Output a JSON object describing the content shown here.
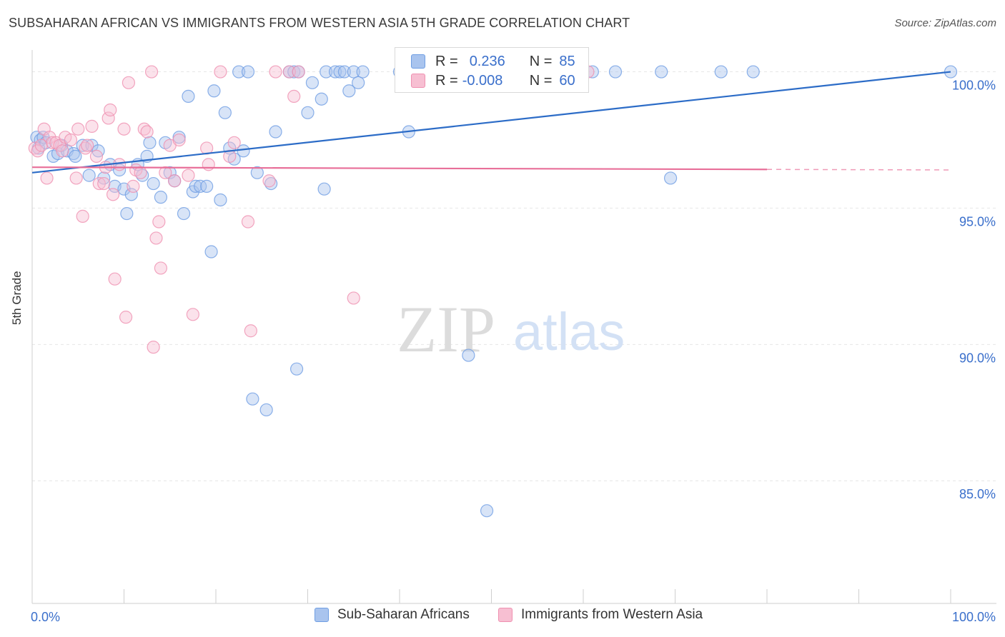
{
  "header": {
    "title": "SUBSAHARAN AFRICAN VS IMMIGRANTS FROM WESTERN ASIA 5TH GRADE CORRELATION CHART",
    "source": "Source: ZipAtlas.com"
  },
  "watermark": {
    "zip": "ZIP",
    "atlas": "atlas"
  },
  "legend_top": {
    "row1": {
      "r_label": "R =",
      "r_value": "0.236",
      "n_label": "N =",
      "n_value": "85"
    },
    "row2": {
      "r_label": "R =",
      "r_value": "-0.008",
      "n_label": "N =",
      "n_value": "60"
    }
  },
  "colors": {
    "blue": "#6f9ee3",
    "blue_fill": "#a9c4ee",
    "blue_line": "#2c6cc7",
    "pink": "#ef90b0",
    "pink_fill": "#f7bfd2",
    "pink_line": "#e86f99",
    "tick_text": "#3a6fcb"
  },
  "chart_data": {
    "type": "scatter",
    "title": "SUBSAHARAN AFRICAN VS IMMIGRANTS FROM WESTERN ASIA 5TH GRADE CORRELATION CHART",
    "xlabel": "",
    "ylabel": "5th Grade",
    "xlim": [
      0,
      100
    ],
    "ylim": [
      80.5,
      100.8
    ],
    "x_tick_labels": [
      "0.0%",
      "100.0%"
    ],
    "y_ticks": [
      85,
      90,
      95,
      100
    ],
    "y_tick_labels": [
      "85.0%",
      "90.0%",
      "95.0%",
      "100.0%"
    ],
    "grid": true,
    "legend_placement": "bottom-center",
    "series": [
      {
        "name": "Sub-Saharan Africans",
        "r": 0.236,
        "n": 85,
        "trend": {
          "x": [
            0,
            100
          ],
          "y": [
            96.3,
            100.0
          ],
          "solid_to": 100
        },
        "points": [
          [
            0.5,
            97.6
          ],
          [
            0.7,
            97.2
          ],
          [
            0.9,
            97.5
          ],
          [
            1.2,
            97.6
          ],
          [
            1.5,
            97.4
          ],
          [
            2.3,
            96.9
          ],
          [
            2.8,
            97.0
          ],
          [
            3.2,
            97.3
          ],
          [
            3.8,
            97.1
          ],
          [
            4.5,
            97.0
          ],
          [
            4.7,
            96.9
          ],
          [
            5.5,
            97.3
          ],
          [
            6.2,
            96.2
          ],
          [
            6.5,
            97.3
          ],
          [
            7.2,
            97.1
          ],
          [
            7.8,
            96.1
          ],
          [
            8.5,
            96.6
          ],
          [
            9.0,
            95.8
          ],
          [
            9.5,
            96.4
          ],
          [
            10.0,
            95.7
          ],
          [
            10.3,
            94.8
          ],
          [
            10.8,
            95.5
          ],
          [
            11.5,
            96.6
          ],
          [
            12.0,
            96.2
          ],
          [
            12.5,
            96.9
          ],
          [
            12.8,
            97.4
          ],
          [
            13.2,
            95.9
          ],
          [
            14.0,
            95.4
          ],
          [
            14.5,
            97.4
          ],
          [
            15.0,
            96.3
          ],
          [
            15.5,
            96.0
          ],
          [
            16.0,
            97.6
          ],
          [
            16.5,
            94.8
          ],
          [
            17.0,
            99.1
          ],
          [
            17.5,
            95.6
          ],
          [
            17.8,
            95.8
          ],
          [
            18.3,
            95.8
          ],
          [
            19.0,
            95.8
          ],
          [
            19.5,
            93.4
          ],
          [
            19.8,
            99.3
          ],
          [
            20.5,
            95.3
          ],
          [
            21.0,
            98.5
          ],
          [
            21.5,
            97.2
          ],
          [
            22.0,
            96.8
          ],
          [
            22.5,
            100.0
          ],
          [
            23.0,
            97.1
          ],
          [
            23.5,
            100.0
          ],
          [
            24.0,
            88.0
          ],
          [
            24.5,
            96.3
          ],
          [
            25.5,
            87.6
          ],
          [
            26.0,
            95.9
          ],
          [
            26.5,
            97.8
          ],
          [
            28.0,
            100.0
          ],
          [
            28.5,
            100.0
          ],
          [
            28.8,
            89.1
          ],
          [
            29.0,
            100.0
          ],
          [
            30.0,
            98.5
          ],
          [
            30.5,
            99.6
          ],
          [
            31.5,
            99.0
          ],
          [
            31.8,
            95.7
          ],
          [
            32.0,
            100.0
          ],
          [
            33.0,
            100.0
          ],
          [
            33.5,
            100.0
          ],
          [
            34.0,
            100.0
          ],
          [
            34.5,
            99.3
          ],
          [
            35.0,
            100.0
          ],
          [
            35.5,
            99.6
          ],
          [
            36.0,
            100.0
          ],
          [
            40.0,
            100.0
          ],
          [
            41.0,
            97.8
          ],
          [
            47.5,
            89.6
          ],
          [
            49.5,
            83.9
          ],
          [
            55.0,
            100.0
          ],
          [
            59.0,
            100.0
          ],
          [
            61.0,
            100.0
          ],
          [
            63.5,
            100.0
          ],
          [
            68.5,
            100.0
          ],
          [
            69.5,
            96.1
          ],
          [
            75.0,
            100.0
          ],
          [
            78.5,
            100.0
          ],
          [
            100.0,
            100.0
          ]
        ]
      },
      {
        "name": "Immigrants from Western Asia",
        "r": -0.008,
        "n": 60,
        "trend": {
          "x": [
            0,
            100
          ],
          "y": [
            96.5,
            96.4
          ],
          "solid_to": 80
        },
        "points": [
          [
            0.3,
            97.2
          ],
          [
            0.6,
            97.1
          ],
          [
            1.0,
            97.3
          ],
          [
            1.3,
            97.9
          ],
          [
            1.6,
            96.1
          ],
          [
            1.9,
            97.6
          ],
          [
            2.2,
            97.4
          ],
          [
            2.6,
            97.4
          ],
          [
            3.0,
            97.3
          ],
          [
            3.3,
            97.1
          ],
          [
            3.6,
            97.6
          ],
          [
            4.2,
            97.5
          ],
          [
            4.8,
            96.1
          ],
          [
            5.0,
            97.9
          ],
          [
            5.5,
            94.7
          ],
          [
            5.8,
            97.2
          ],
          [
            6.0,
            97.3
          ],
          [
            6.5,
            98.0
          ],
          [
            7.0,
            96.9
          ],
          [
            7.3,
            95.9
          ],
          [
            7.8,
            95.9
          ],
          [
            8.0,
            96.5
          ],
          [
            8.3,
            98.3
          ],
          [
            8.5,
            98.6
          ],
          [
            8.8,
            95.5
          ],
          [
            9.0,
            92.4
          ],
          [
            9.5,
            96.6
          ],
          [
            10.0,
            97.9
          ],
          [
            10.2,
            91.0
          ],
          [
            10.5,
            99.6
          ],
          [
            11.0,
            95.8
          ],
          [
            11.3,
            96.4
          ],
          [
            11.8,
            96.3
          ],
          [
            12.2,
            97.9
          ],
          [
            12.5,
            97.8
          ],
          [
            13.0,
            100.0
          ],
          [
            13.2,
            89.9
          ],
          [
            13.5,
            93.9
          ],
          [
            13.8,
            94.5
          ],
          [
            14.0,
            92.8
          ],
          [
            14.5,
            96.3
          ],
          [
            15.0,
            97.3
          ],
          [
            15.5,
            96.0
          ],
          [
            16.0,
            97.5
          ],
          [
            17.0,
            96.2
          ],
          [
            17.5,
            91.1
          ],
          [
            19.0,
            97.2
          ],
          [
            19.2,
            96.6
          ],
          [
            20.5,
            100.0
          ],
          [
            21.5,
            96.9
          ],
          [
            22.0,
            97.4
          ],
          [
            23.5,
            94.5
          ],
          [
            23.8,
            90.5
          ],
          [
            25.8,
            96.0
          ],
          [
            26.5,
            100.0
          ],
          [
            28.0,
            100.0
          ],
          [
            28.5,
            99.1
          ],
          [
            29.0,
            100.0
          ],
          [
            35.0,
            91.7
          ],
          [
            60.5,
            100.0
          ]
        ]
      }
    ]
  },
  "bottom_legend": {
    "item1": "Sub-Saharan Africans",
    "item2": "Immigrants from Western Asia"
  }
}
